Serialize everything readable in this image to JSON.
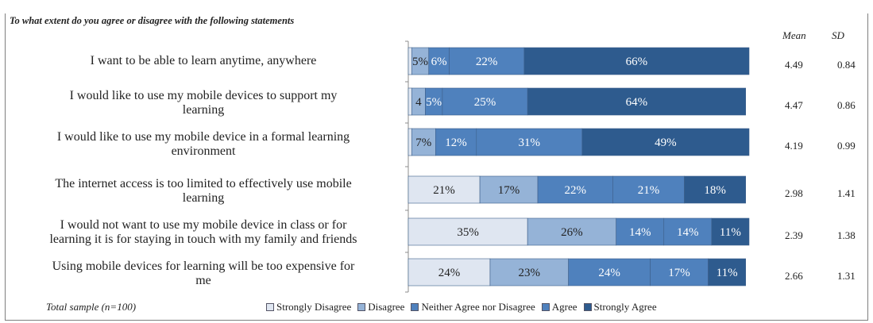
{
  "title": "To what extent do you agree or disagree with the following statements",
  "headers": {
    "mean": "Mean",
    "sd": "SD"
  },
  "footnote": "Total sample (n=100)",
  "colors": {
    "Strongly Disagree": "#dfe6f1",
    "Disagree": "#95b3d7",
    "Neither Agree nor Disagree": "#4f81bd",
    "Agree": "#4f81bd",
    "Strongly Agree": "#2e5b8e"
  },
  "chart_data": {
    "type": "bar",
    "orientation": "horizontal",
    "stacked": true,
    "xlim": [
      0,
      100
    ],
    "categories": [
      "I want to be able to learn anytime, anywhere",
      "I would like to use my mobile devices to support my learning",
      "I would like to use my mobile device in a formal learning environment",
      "The internet access is too limited to effectively use mobile learning",
      "I would not want to use my mobile device in class or for learning it is for staying in touch with my family and friends",
      "Using mobile devices for learning will be too expensive for me"
    ],
    "category_lines": [
      [
        "I want to be able to learn anytime, anywhere"
      ],
      [
        "I would like to use my mobile devices to support my",
        "learning"
      ],
      [
        "I would like to use my mobile device in a formal learning",
        "environment"
      ],
      [
        "The internet access is too limited to effectively use mobile",
        "learning"
      ],
      [
        "I would not want to use my mobile device in class or for",
        "learning it is for staying in touch with my family and friends"
      ],
      [
        "Using mobile devices for learning will be too expensive for",
        "me"
      ]
    ],
    "series": [
      {
        "name": "Strongly Disagree",
        "values": [
          1,
          1,
          1,
          21,
          35,
          24
        ],
        "labels": [
          "",
          "",
          "",
          "21%",
          "35%",
          "24%"
        ]
      },
      {
        "name": "Disagree",
        "values": [
          5,
          4,
          7,
          17,
          26,
          23
        ],
        "labels": [
          "5%",
          "4",
          "7%",
          "17%",
          "26%",
          "23%"
        ]
      },
      {
        "name": "Neither Agree nor Disagree",
        "values": [
          6,
          5,
          12,
          22,
          14,
          24
        ],
        "labels": [
          "6%",
          "5%",
          "12%",
          "22%",
          "14%",
          "24%"
        ]
      },
      {
        "name": "Agree",
        "values": [
          22,
          25,
          31,
          21,
          14,
          17
        ],
        "labels": [
          "22%",
          "25%",
          "31%",
          "21%",
          "14%",
          "17%"
        ]
      },
      {
        "name": "Strongly Agree",
        "values": [
          66,
          64,
          49,
          18,
          11,
          11
        ],
        "labels": [
          "66%",
          "64%",
          "49%",
          "18%",
          "11%",
          "11%"
        ]
      }
    ],
    "mean": [
      "4.49",
      "4.47",
      "4.19",
      "2.98",
      "2.39",
      "2.66"
    ],
    "sd": [
      "0.84",
      "0.86",
      "0.99",
      "1.41",
      "1.38",
      "1.31"
    ],
    "legend": [
      "Strongly Disagree",
      "Disagree",
      "Neither Agree nor Disagree",
      "Agree",
      "Strongly Agree"
    ],
    "legend_position": "bottom"
  }
}
